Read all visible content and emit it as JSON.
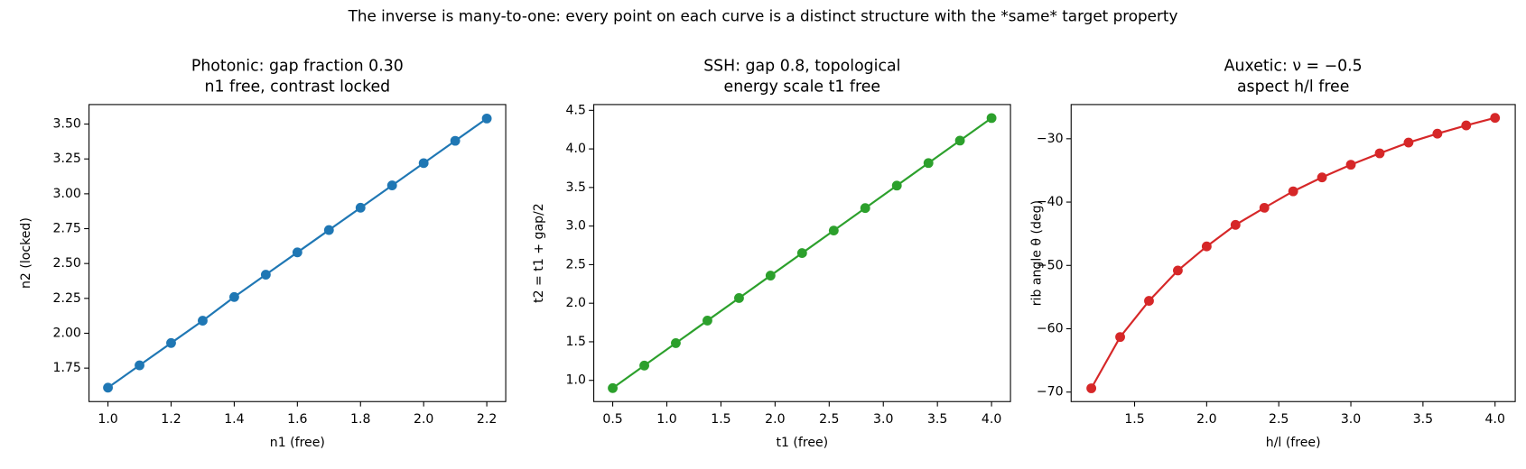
{
  "suptitle": "The inverse is many-to-one: every point on each curve is a distinct structure with the *same* target property",
  "chart_data": [
    {
      "type": "line",
      "title": "Photonic: gap fraction 0.30",
      "subtitle": "n1 free, contrast locked",
      "x_label": "n1 (free)",
      "y_label": "n2 (locked)",
      "color": "#1f77b4",
      "x": [
        1.0,
        1.1,
        1.2,
        1.3,
        1.4,
        1.5,
        1.6,
        1.7,
        1.8,
        1.9,
        2.0,
        2.1,
        2.2
      ],
      "values": [
        1.61,
        1.77,
        1.93,
        2.09,
        2.26,
        2.42,
        2.58,
        2.74,
        2.9,
        3.06,
        3.22,
        3.38,
        3.54
      ],
      "xlim": [
        0.94,
        2.26
      ],
      "ylim": [
        1.51,
        3.64
      ],
      "xticks": [
        {
          "value": 1.0,
          "label": "1.0"
        },
        1.2,
        1.4,
        1.6,
        1.8,
        {
          "value": 2.0,
          "label": "2.0"
        },
        2.2
      ],
      "yticks": [
        1.75,
        {
          "value": 2.0,
          "label": "2.00"
        },
        2.25,
        {
          "value": 2.5,
          "label": "2.50"
        },
        2.75,
        {
          "value": 3.0,
          "label": "3.00"
        },
        3.25,
        {
          "value": 3.5,
          "label": "3.50"
        }
      ]
    },
    {
      "type": "line",
      "title": "SSH: gap 0.8, topological",
      "subtitle": "energy scale t1 free",
      "x_label": "t1 (free)",
      "y_label": "t2 = t1 + gap/2",
      "color": "#2ca02c",
      "x": [
        0.5,
        0.792,
        1.083,
        1.375,
        1.667,
        1.958,
        2.25,
        2.542,
        2.833,
        3.125,
        3.417,
        3.708,
        4.0
      ],
      "values": [
        0.9,
        1.192,
        1.483,
        1.775,
        2.067,
        2.358,
        2.65,
        2.942,
        3.233,
        3.525,
        3.817,
        4.108,
        4.4
      ],
      "xlim": [
        0.325,
        4.175
      ],
      "ylim": [
        0.725,
        4.575
      ],
      "xticks": [
        0.5,
        {
          "value": 1.0,
          "label": "1.0"
        },
        1.5,
        {
          "value": 2.0,
          "label": "2.0"
        },
        2.5,
        {
          "value": 3.0,
          "label": "3.0"
        },
        3.5,
        {
          "value": 4.0,
          "label": "4.0"
        }
      ],
      "yticks": [
        {
          "value": 1.0,
          "label": "1.0"
        },
        1.5,
        {
          "value": 2.0,
          "label": "2.0"
        },
        2.5,
        {
          "value": 3.0,
          "label": "3.0"
        },
        3.5,
        {
          "value": 4.0,
          "label": "4.0"
        },
        4.5
      ]
    },
    {
      "type": "line",
      "title": "Auxetic: ν = −0.5",
      "subtitle": "aspect h/l free",
      "x_label": "h/l (free)",
      "y_label": "rib angle θ (deg)",
      "color": "#d62728",
      "x": [
        1.2,
        1.4,
        1.6,
        1.8,
        2.0,
        2.2,
        2.4,
        2.6,
        2.8,
        3.0,
        3.2,
        3.4,
        3.6,
        3.8,
        4.0
      ],
      "values": [
        -69.4,
        -61.3,
        -55.6,
        -50.8,
        -47.0,
        -43.6,
        -40.9,
        -38.3,
        -36.1,
        -34.1,
        -32.3,
        -30.6,
        -29.2,
        -27.9,
        -26.7
      ],
      "xlim": [
        1.06,
        4.14
      ],
      "ylim": [
        -71.5,
        -24.6
      ],
      "xticks": [
        1.5,
        {
          "value": 2.0,
          "label": "2.0"
        },
        2.5,
        {
          "value": 3.0,
          "label": "3.0"
        },
        3.5,
        {
          "value": 4.0,
          "label": "4.0"
        }
      ],
      "yticks": [
        {
          "value": -70,
          "label": "−70"
        },
        {
          "value": -60,
          "label": "−60"
        },
        {
          "value": -50,
          "label": "−50"
        },
        {
          "value": -40,
          "label": "−40"
        },
        {
          "value": -30,
          "label": "−30"
        }
      ]
    }
  ]
}
